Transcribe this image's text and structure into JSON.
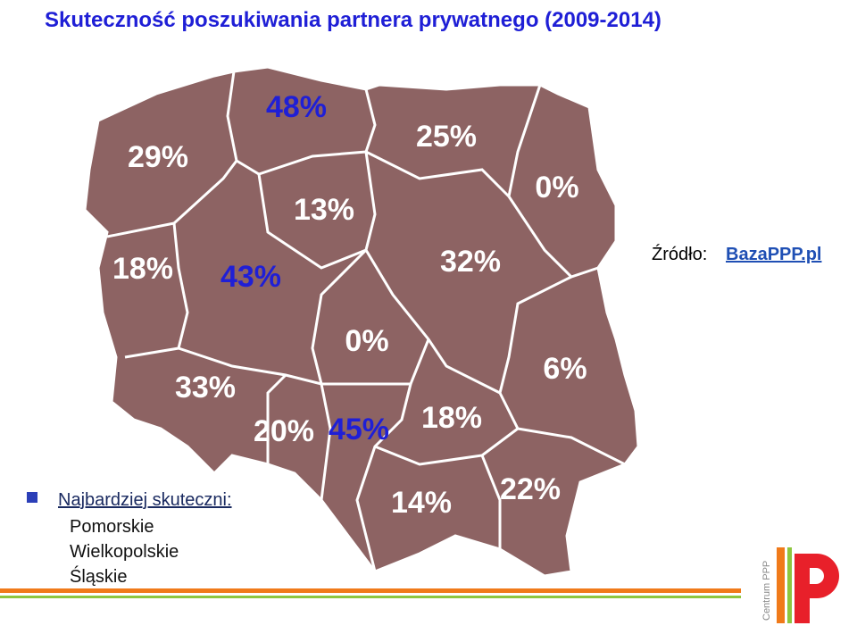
{
  "title": "Skuteczność poszukiwania partnera prywatnego (2009-2014)",
  "map": {
    "regions": [
      {
        "label": "48%",
        "highlight": true
      },
      {
        "label": "29%",
        "highlight": false
      },
      {
        "label": "25%",
        "highlight": false
      },
      {
        "label": "0%",
        "highlight": false
      },
      {
        "label": "13%",
        "highlight": false
      },
      {
        "label": "18%",
        "highlight": false
      },
      {
        "label": "43%",
        "highlight": true
      },
      {
        "label": "32%",
        "highlight": false
      },
      {
        "label": "0%",
        "highlight": false
      },
      {
        "label": "6%",
        "highlight": false
      },
      {
        "label": "33%",
        "highlight": false
      },
      {
        "label": "20%",
        "highlight": false
      },
      {
        "label": "45%",
        "highlight": true
      },
      {
        "label": "18%",
        "highlight": false
      },
      {
        "label": "14%",
        "highlight": false
      },
      {
        "label": "22%",
        "highlight": false
      }
    ]
  },
  "source": {
    "label": "Źródło:",
    "link": "BazaPPP.pl"
  },
  "legend": {
    "heading": "Najbardziej skuteczni:",
    "items": [
      "Pomorskie",
      "Wielkopolskie",
      "Śląskie"
    ]
  },
  "logo": {
    "text": "Centrum PPP"
  }
}
